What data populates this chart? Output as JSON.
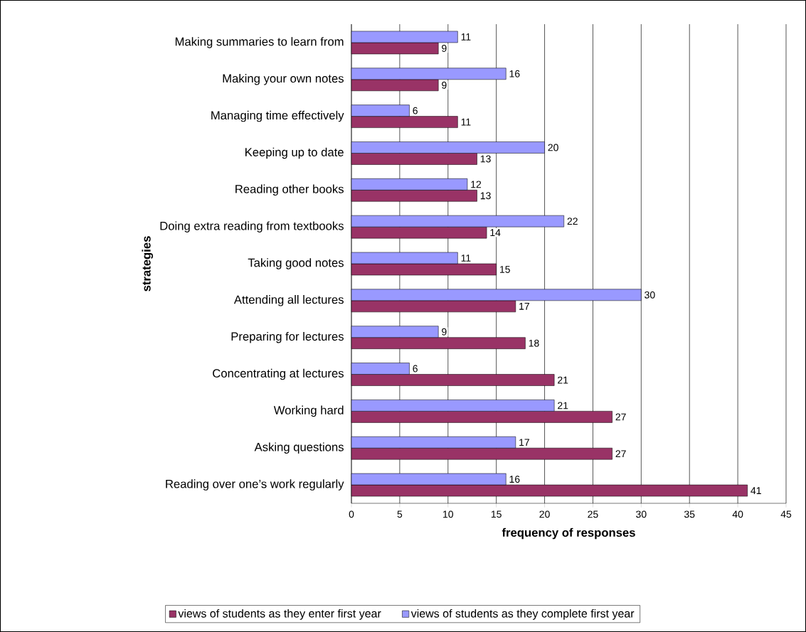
{
  "chart_data": {
    "type": "bar",
    "orientation": "horizontal",
    "xlabel": "frequency of responses",
    "ylabel": "strategies",
    "categories": [
      "Making summaries to learn from",
      "Making your own notes",
      "Managing time effectively",
      "Keeping up to date",
      "Reading other books",
      "Doing extra reading from textbooks",
      "Taking good notes",
      "Attending all lectures",
      "Preparing for lectures",
      "Concentrating at lectures",
      "Working hard",
      "Asking questions",
      "Reading over one’s work regularly"
    ],
    "series": [
      {
        "name": "views of students as they enter first year",
        "color": "#993366",
        "values": [
          9,
          9,
          11,
          13,
          13,
          14,
          15,
          17,
          18,
          21,
          27,
          27,
          41
        ]
      },
      {
        "name": "views of students as they complete first year",
        "color": "#9999ff",
        "values": [
          11,
          16,
          6,
          20,
          12,
          22,
          11,
          30,
          9,
          6,
          21,
          17,
          16
        ]
      }
    ],
    "xlim": [
      0,
      45
    ],
    "xticks": [
      0,
      5,
      10,
      15,
      20,
      25,
      30,
      35,
      40,
      45
    ],
    "grid": "x",
    "legend": "bottom",
    "data_labels": true
  }
}
